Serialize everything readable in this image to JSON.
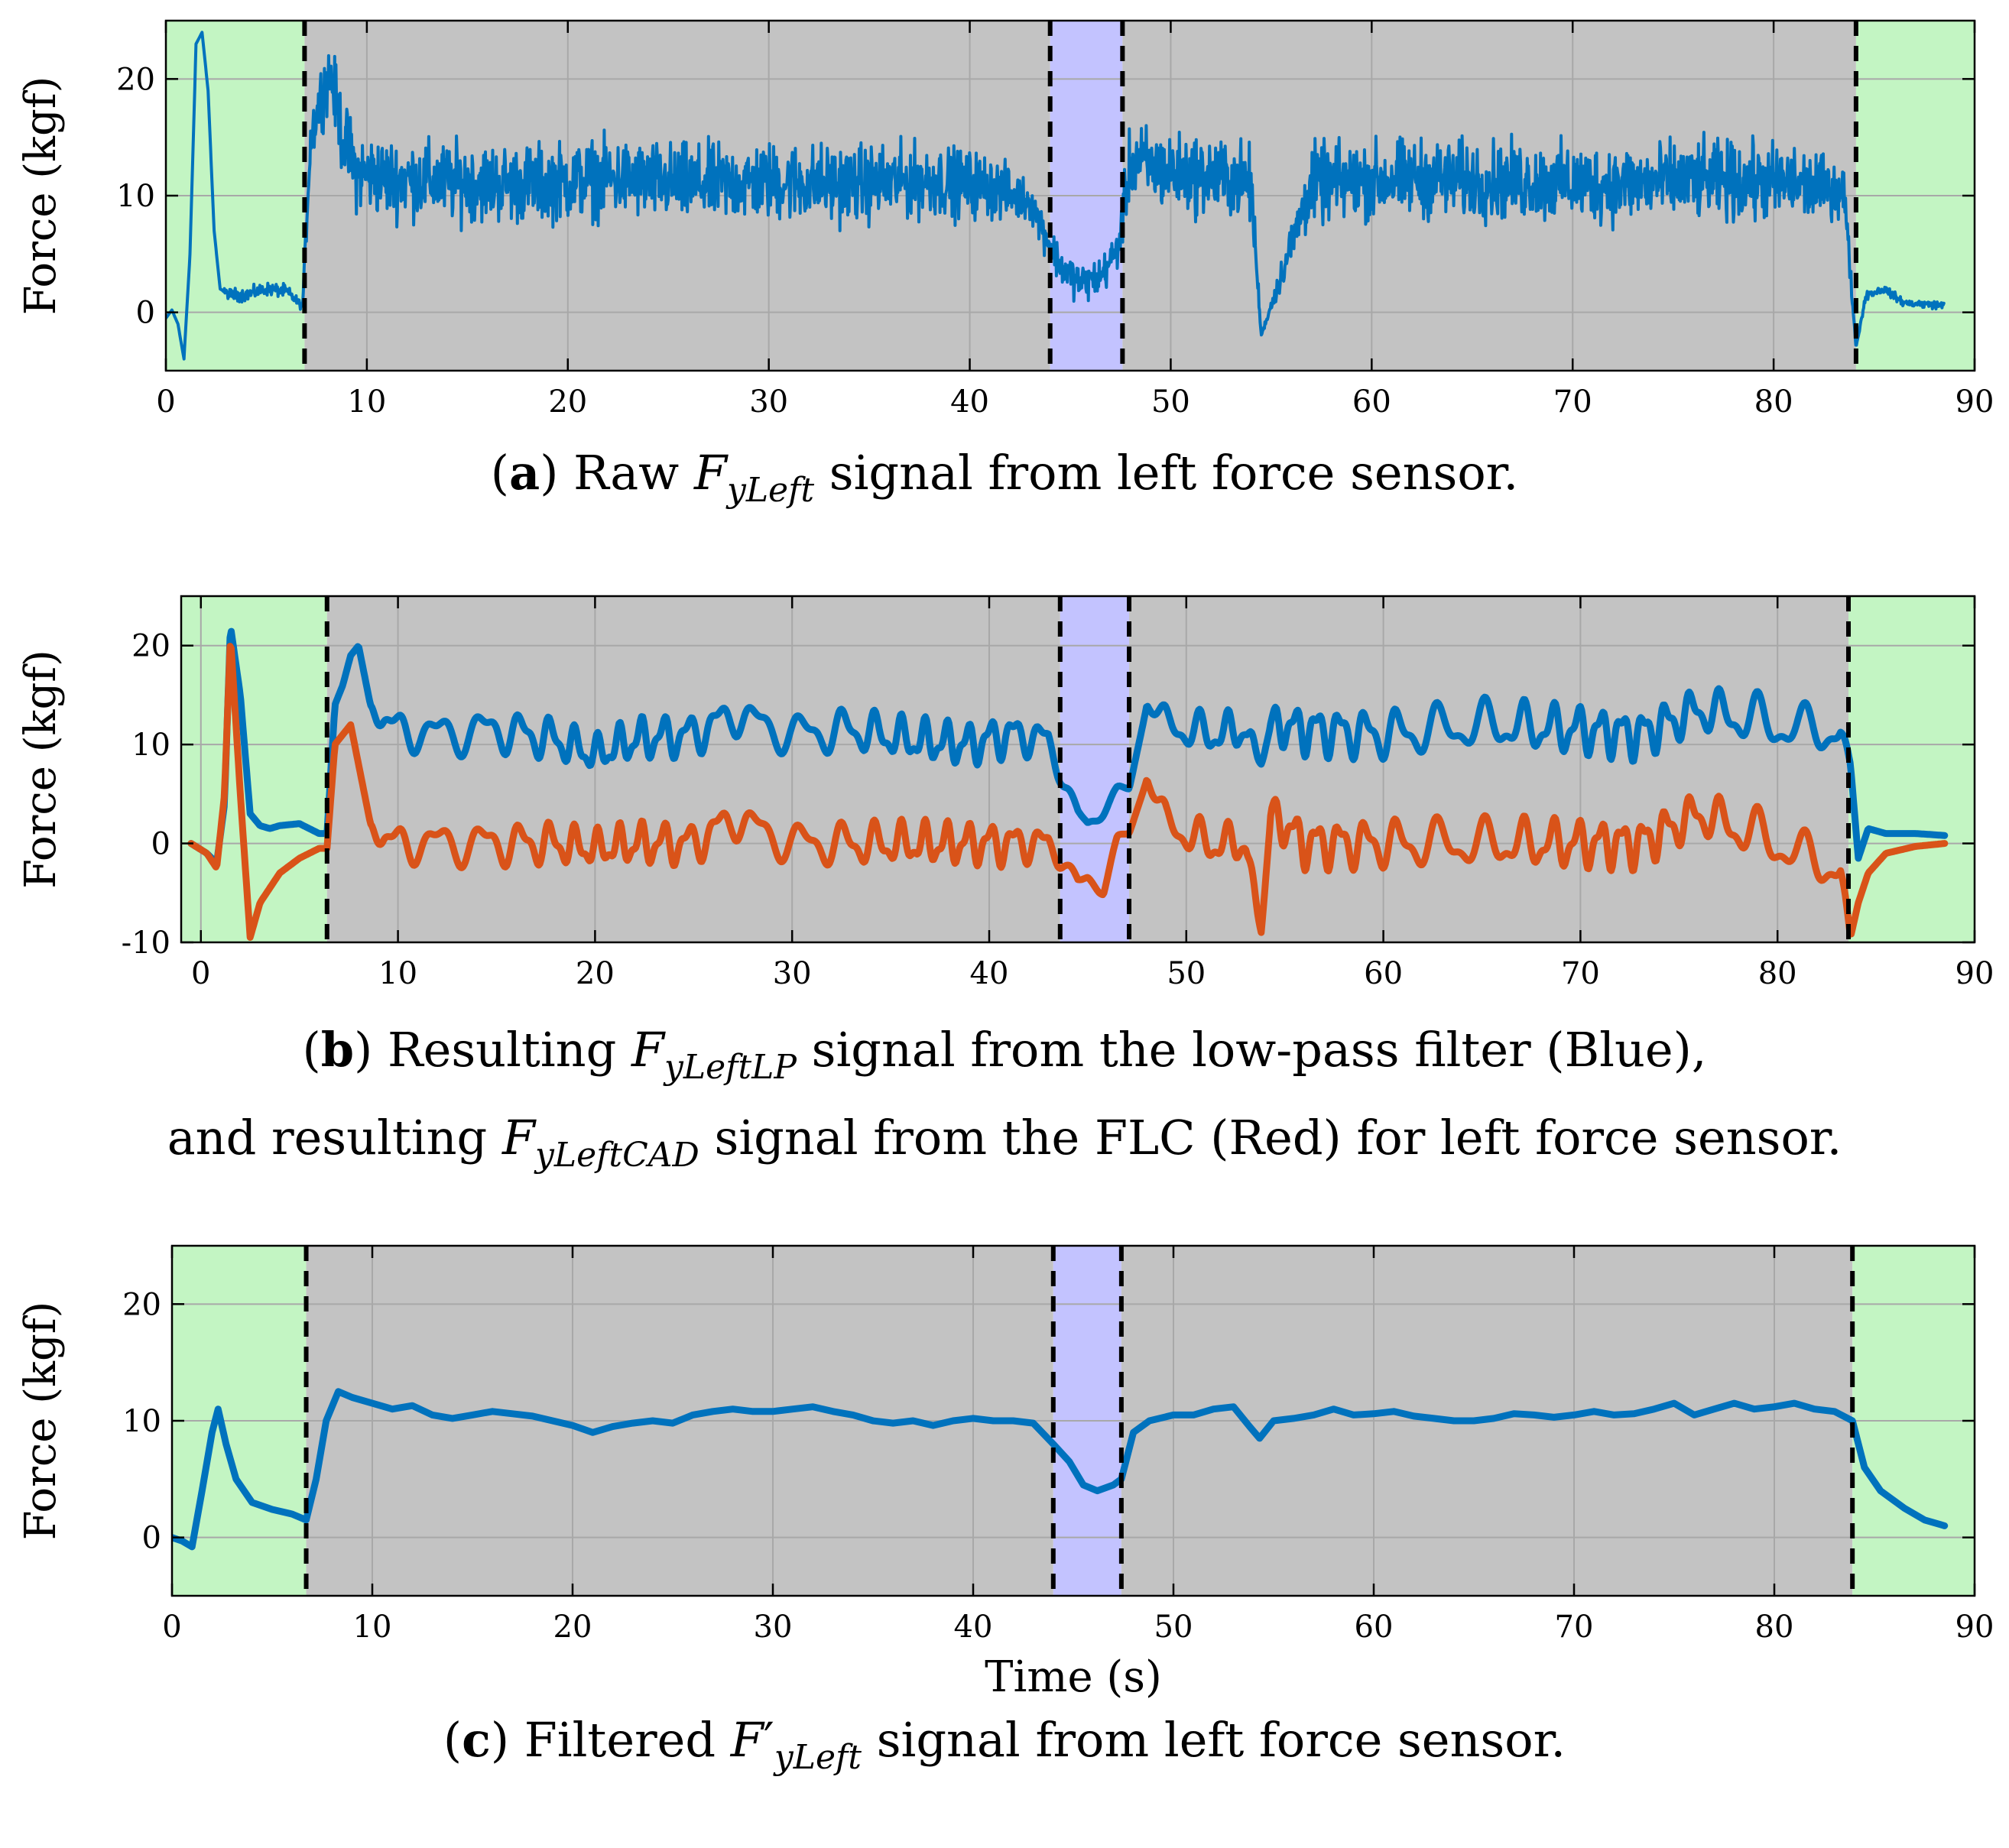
{
  "figure": {
    "panels": [
      {
        "id": "a",
        "ylabel": "Force (kgf)",
        "xlabel": "",
        "caption": {
          "letter": "a",
          "before": "Raw",
          "symbol": "F",
          "subscript": "yLeft",
          "prime": "",
          "after": "signal from left force sensor."
        }
      },
      {
        "id": "b",
        "ylabel": "Force (kgf)",
        "xlabel": "",
        "caption": {
          "letter": "b",
          "before": "Resulting",
          "symbol": "F",
          "subscript": "yLeftLP",
          "after": "signal from the low-pass filter (Blue),",
          "line2_before": "and resulting",
          "symbol2": "F",
          "subscript2": "yLeftCAD",
          "line2_after": "signal from the FLC (Red) for left force sensor."
        }
      },
      {
        "id": "c",
        "ylabel": "Force (kgf)",
        "xlabel": "Time (s)",
        "caption": {
          "letter": "c",
          "before": "Filtered",
          "symbol": "F",
          "prime": "′",
          "subscript": "yLeft",
          "after": "signal from left force sensor."
        }
      }
    ]
  },
  "colors": {
    "green_region": "#c3f5c3",
    "gray_region": "#c3c3c3",
    "blue_region": "#c3c3ff",
    "series_blue": "#0072bd",
    "series_red": "#d95319",
    "grid": "#a8a8a8",
    "divider": "#000000"
  },
  "chart_data": [
    {
      "type": "line",
      "panel": "a",
      "xlim": [
        0,
        90
      ],
      "ylim": [
        -5,
        25
      ],
      "xticks": [
        0,
        10,
        20,
        30,
        40,
        50,
        60,
        70,
        80,
        90
      ],
      "yticks": [
        0,
        10,
        20
      ],
      "grid": true,
      "regions": [
        {
          "x0": 0,
          "x1": 6.9,
          "color": "green"
        },
        {
          "x0": 6.9,
          "x1": 44.0,
          "color": "gray"
        },
        {
          "x0": 44.0,
          "x1": 47.6,
          "color": "blue"
        },
        {
          "x0": 47.6,
          "x1": 84.1,
          "color": "gray"
        },
        {
          "x0": 84.1,
          "x1": 90,
          "color": "green"
        }
      ],
      "dividers": [
        6.9,
        44.0,
        47.6,
        84.1
      ],
      "series": [
        {
          "style": "noisy",
          "color": "blue",
          "x": [
            0,
            0.3,
            0.6,
            0.9,
            1.2,
            1.5,
            1.8,
            2.1,
            2.4,
            2.7,
            3.2,
            4.0,
            5.0,
            6.0,
            6.8,
            7.2,
            7.8,
            8.2,
            8.8,
            9.5,
            11,
            14,
            18,
            22,
            26,
            30,
            34,
            38,
            41,
            43,
            44.5,
            45.5,
            46.5,
            47.4,
            48.0,
            50,
            53,
            54.0,
            54.5,
            57,
            62,
            67,
            72,
            77,
            81,
            83.5,
            84.1,
            84.6,
            85.5,
            86.5,
            88.5
          ],
          "y": [
            -0.5,
            0.2,
            -1.0,
            -4.0,
            5.0,
            23.0,
            24.0,
            19.0,
            7.0,
            2.0,
            1.5,
            1.5,
            2.0,
            1.8,
            0.5,
            15.0,
            19.0,
            20.5,
            15.0,
            12.0,
            11.5,
            11.2,
            11.0,
            11.5,
            11.0,
            11.2,
            11.0,
            11.3,
            10.8,
            9.5,
            4.0,
            2.5,
            3.0,
            5.5,
            13.0,
            12.0,
            11.5,
            11.0,
            -2.0,
            11.0,
            11.5,
            11.2,
            11.0,
            11.3,
            11.0,
            10.5,
            -3.0,
            1.5,
            2.0,
            0.8,
            0.6
          ],
          "noise": [
            0,
            0,
            0,
            0,
            0,
            0,
            0,
            0,
            0,
            0,
            0.5,
            0.5,
            0.5,
            0.5,
            0.3,
            2.2,
            2.5,
            2.5,
            3.0,
            3.0,
            3.0,
            3.0,
            3.0,
            3.0,
            3.0,
            3.0,
            3.0,
            2.8,
            2.5,
            1.5,
            1.5,
            1.5,
            1.5,
            1.5,
            3.0,
            3.0,
            3.0,
            3.0,
            0,
            3.0,
            3.0,
            3.0,
            3.0,
            3.0,
            3.0,
            2.0,
            0,
            0.4,
            0.3,
            0.3,
            0.3
          ]
        }
      ]
    },
    {
      "type": "line",
      "panel": "b",
      "xlim": [
        -1,
        90
      ],
      "ylim": [
        -10,
        25
      ],
      "xticks": [
        0,
        10,
        20,
        30,
        40,
        50,
        60,
        70,
        80,
        90
      ],
      "yticks": [
        -10,
        0,
        10,
        20
      ],
      "grid": true,
      "regions": [
        {
          "x0": -1,
          "x1": 6.4,
          "color": "green"
        },
        {
          "x0": 6.4,
          "x1": 43.6,
          "color": "gray"
        },
        {
          "x0": 43.6,
          "x1": 47.1,
          "color": "blue"
        },
        {
          "x0": 47.1,
          "x1": 83.6,
          "color": "gray"
        },
        {
          "x0": 83.6,
          "x1": 90,
          "color": "green"
        }
      ],
      "dividers": [
        6.4,
        43.6,
        47.1,
        83.6
      ],
      "series": [
        {
          "style": "wavy",
          "color": "blue",
          "x": [
            -0.5,
            0.3,
            0.8,
            1.2,
            1.5,
            2.0,
            2.5,
            3.0,
            3.5,
            4.0,
            5.0,
            6.0,
            6.4,
            6.8,
            7.2,
            7.6,
            8.0,
            8.6,
            9.2,
            10.0,
            12,
            15,
            18,
            20,
            22,
            25,
            27,
            30,
            33,
            36,
            39,
            41,
            43.0,
            43.8,
            44.5,
            45.0,
            45.8,
            46.5,
            47.1,
            48.0,
            49.0,
            51,
            53,
            53.8,
            54.3,
            56,
            60,
            65,
            70,
            73,
            76,
            80,
            83.2,
            83.7,
            84.1,
            84.6,
            85.5,
            87,
            88.5
          ],
          "y": [
            0,
            -1.0,
            -2.0,
            4.0,
            22.0,
            15.0,
            3.0,
            1.8,
            1.5,
            1.8,
            2.0,
            1.0,
            1.0,
            14.0,
            16.0,
            19.0,
            20.0,
            14.0,
            12.5,
            11.5,
            11.0,
            11.5,
            10.5,
            9.0,
            10.5,
            11.0,
            13.0,
            11.0,
            11.5,
            10.5,
            10.0,
            11.0,
            10.5,
            6.0,
            3.0,
            2.0,
            3.5,
            5.0,
            5.5,
            14.0,
            12.0,
            11.0,
            11.5,
            8.0,
            12.0,
            11.5,
            11.0,
            12.0,
            11.5,
            11.0,
            13.5,
            12.0,
            11.0,
            8.0,
            -1.5,
            1.5,
            1.0,
            1.0,
            0.8
          ],
          "amp": [
            0,
            0,
            0,
            0,
            0,
            0,
            0,
            0,
            0,
            0,
            0,
            0,
            0,
            0,
            0,
            0,
            0,
            0,
            1.0,
            1.2,
            1.4,
            1.4,
            1.4,
            1.2,
            1.4,
            1.4,
            1.2,
            1.4,
            1.4,
            1.4,
            1.4,
            1.4,
            1.0,
            0.5,
            0.5,
            0.5,
            0.5,
            0.5,
            0.5,
            0,
            1.2,
            1.4,
            1.2,
            0,
            1.2,
            1.6,
            1.6,
            1.6,
            1.6,
            1.6,
            1.4,
            1.8,
            1.2,
            0,
            0,
            0,
            0,
            0,
            0
          ]
        },
        {
          "style": "wavy",
          "color": "red",
          "x": [
            -0.5,
            0.3,
            0.8,
            1.2,
            1.5,
            2.0,
            2.5,
            3.0,
            4.0,
            5.0,
            6.0,
            6.4,
            6.8,
            7.2,
            7.6,
            8.0,
            8.6,
            9.2,
            10.0,
            12,
            15,
            18,
            20,
            22,
            25,
            27,
            30,
            33,
            36,
            39,
            41,
            43.0,
            43.8,
            44.5,
            45.0,
            45.8,
            46.5,
            47.1,
            48.0,
            49.0,
            51,
            53,
            53.8,
            54.3,
            56,
            60,
            65,
            70,
            73,
            76,
            80,
            83.2,
            83.7,
            84.1,
            84.6,
            85.5,
            87,
            88.5
          ],
          "y": [
            0,
            -1.0,
            -2.5,
            5.0,
            21.0,
            5.0,
            -9.5,
            -6.0,
            -3.0,
            -1.5,
            -0.5,
            -0.5,
            10.0,
            11.0,
            12.0,
            8.0,
            2.0,
            0.5,
            0.0,
            0.0,
            0.0,
            0.0,
            -0.5,
            0.0,
            0.0,
            2.5,
            0.0,
            0.0,
            0.0,
            0.0,
            0.0,
            0.0,
            -2.0,
            -4.0,
            -3.5,
            -4.5,
            0.0,
            1.0,
            6.5,
            2.0,
            0.0,
            0.0,
            -9.0,
            3.0,
            0.0,
            0.0,
            0.0,
            0.0,
            0.0,
            3.0,
            0.0,
            -3.0,
            -9.5,
            -6.0,
            -3.0,
            -1.0,
            -0.3,
            0.0
          ],
          "amp": [
            0,
            0,
            0,
            0,
            0,
            0,
            0,
            0,
            0,
            0,
            0,
            0,
            0,
            0,
            0,
            0,
            0,
            1.0,
            1.2,
            1.4,
            1.4,
            1.4,
            1.2,
            1.4,
            1.4,
            1.2,
            1.4,
            1.4,
            1.4,
            1.4,
            1.4,
            1.0,
            0.5,
            0.5,
            0.5,
            0.5,
            0.5,
            0.5,
            0,
            1.2,
            1.4,
            1.2,
            0,
            1.2,
            1.6,
            1.6,
            1.6,
            1.6,
            1.6,
            1.4,
            1.8,
            1.2,
            0,
            0,
            0,
            0,
            0,
            0
          ]
        }
      ]
    },
    {
      "type": "line",
      "panel": "c",
      "xlim": [
        0,
        90
      ],
      "ylim": [
        -5,
        25
      ],
      "xticks": [
        0,
        10,
        20,
        30,
        40,
        50,
        60,
        70,
        80,
        90
      ],
      "yticks": [
        0,
        10,
        20
      ],
      "grid": true,
      "regions": [
        {
          "x0": 0,
          "x1": 6.7,
          "color": "green"
        },
        {
          "x0": 6.7,
          "x1": 44.0,
          "color": "gray"
        },
        {
          "x0": 44.0,
          "x1": 47.4,
          "color": "blue"
        },
        {
          "x0": 47.4,
          "x1": 83.9,
          "color": "gray"
        },
        {
          "x0": 83.9,
          "x1": 90,
          "color": "green"
        }
      ],
      "dividers": [
        6.7,
        44.0,
        47.4,
        83.9
      ],
      "series": [
        {
          "style": "smooth",
          "color": "blue",
          "x": [
            0,
            0.5,
            1.0,
            1.5,
            2.0,
            2.3,
            2.7,
            3.2,
            4.0,
            5.0,
            6.0,
            6.7,
            7.2,
            7.7,
            8.3,
            9.0,
            10,
            11,
            12,
            13,
            14,
            15,
            16,
            17,
            18,
            19,
            20,
            21,
            22,
            23,
            24,
            25,
            26,
            27,
            28,
            29,
            30,
            31,
            32,
            33,
            34,
            35,
            36,
            37,
            38,
            39,
            40,
            41,
            42,
            43,
            44.0,
            44.8,
            45.5,
            46.2,
            47.0,
            47.4,
            48.0,
            48.8,
            50,
            51,
            52,
            53,
            53.8,
            54.3,
            55,
            56,
            57,
            58,
            59,
            60,
            61,
            62,
            63,
            64,
            65,
            66,
            67,
            68,
            69,
            70,
            71,
            72,
            73,
            74,
            75,
            76,
            77,
            78,
            79,
            80,
            81,
            82,
            83,
            83.9,
            84.5,
            85.3,
            86.5,
            87.5,
            88.5
          ],
          "y": [
            0,
            -0.3,
            -0.8,
            4.0,
            9.0,
            11.0,
            8.0,
            5.0,
            3.0,
            2.4,
            2.0,
            1.5,
            5.0,
            10.0,
            12.5,
            12.0,
            11.5,
            11.0,
            11.3,
            10.5,
            10.2,
            10.5,
            10.8,
            10.6,
            10.4,
            10.0,
            9.6,
            9.0,
            9.5,
            9.8,
            10.0,
            9.8,
            10.5,
            10.8,
            11.0,
            10.8,
            10.8,
            11.0,
            11.2,
            10.8,
            10.5,
            10.0,
            9.8,
            10.0,
            9.6,
            10.0,
            10.2,
            10.0,
            10.0,
            9.8,
            8.0,
            6.5,
            4.5,
            4.0,
            4.5,
            5.0,
            9.0,
            10.0,
            10.5,
            10.5,
            11.0,
            11.2,
            9.5,
            8.5,
            10.0,
            10.2,
            10.5,
            11.0,
            10.5,
            10.6,
            10.8,
            10.4,
            10.2,
            10.0,
            10.0,
            10.2,
            10.6,
            10.5,
            10.3,
            10.5,
            10.8,
            10.5,
            10.6,
            11.0,
            11.5,
            10.5,
            11.0,
            11.5,
            11.0,
            11.2,
            11.5,
            11.0,
            10.8,
            10.0,
            6.0,
            4.0,
            2.5,
            1.5,
            1.0
          ]
        }
      ]
    }
  ]
}
